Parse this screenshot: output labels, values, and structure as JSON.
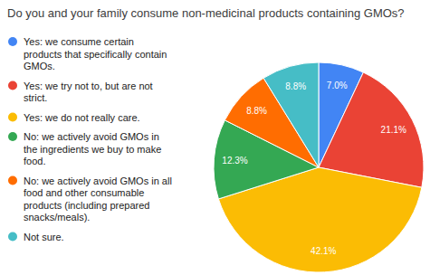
{
  "chart_data": {
    "type": "pie",
    "title": "Do you and your family consume non-medicinal products containing GMOs?",
    "categories": [
      "Yes: we consume certain products that specifically contain GMOs.",
      "Yes: we try not to, but are not strict.",
      "Yes: we do not really care.",
      "No: we actively avoid GMOs in the ingredients we buy to make food.",
      "No: we actively avoid GMOs in all food and other consumable products (including prepared snacks/meals).",
      "Not sure."
    ],
    "values": [
      7.0,
      21.1,
      42.1,
      12.3,
      8.8,
      8.8
    ],
    "value_labels": [
      "7.0%",
      "21.1%",
      "42.1%",
      "12.3%",
      "8.8%",
      "8.8%"
    ],
    "colors": [
      "#4285f4",
      "#ea4335",
      "#fbbc04",
      "#34a853",
      "#ff6d01",
      "#46bdc6"
    ],
    "data_labels": true,
    "legend": "left"
  }
}
